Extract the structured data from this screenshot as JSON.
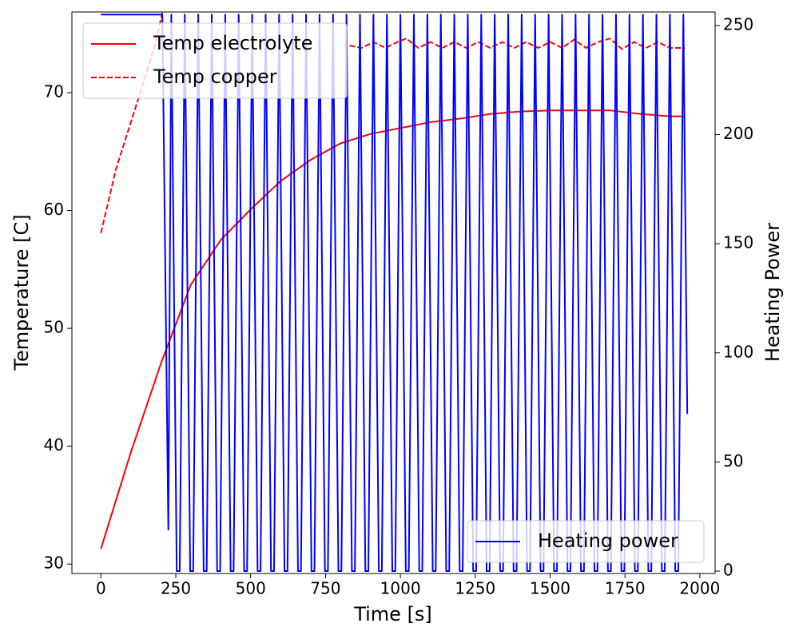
{
  "chart_data": {
    "type": "line",
    "xlabel": "Time [s]",
    "ylabel": "Temperature [C]",
    "y2label": "Heating Power",
    "xlim": [
      -97,
      2051
    ],
    "xticks": [
      0,
      250,
      500,
      750,
      1000,
      1250,
      1500,
      1750,
      2000
    ],
    "ylim": [
      29.2,
      76.85
    ],
    "yticks": [
      30,
      40,
      50,
      60,
      70
    ],
    "y2lim": [
      -1.1,
      256.2
    ],
    "y2ticks": [
      0,
      50,
      100,
      150,
      200,
      250
    ],
    "legend_loc": "upper left",
    "legend2_loc": "lower right",
    "series": [
      {
        "name": "Temp electrolyte",
        "color": "#ff0000",
        "linestyle": "solid",
        "x": [
          0,
          100,
          200,
          300,
          400,
          500,
          600,
          700,
          800,
          900,
          1000,
          1100,
          1200,
          1300,
          1400,
          1500,
          1600,
          1700,
          1800,
          1900,
          1950
        ],
        "values": [
          31.3,
          39.5,
          47.0,
          53.7,
          57.5,
          60.1,
          62.5,
          64.3,
          65.7,
          66.5,
          67.0,
          67.5,
          67.8,
          68.2,
          68.4,
          68.5,
          68.5,
          68.5,
          68.2,
          68.0,
          68.0
        ]
      },
      {
        "name": "Temp copper",
        "color": "#ff0000",
        "linestyle": "dashed",
        "x": [
          0,
          50,
          100,
          150,
          180,
          205,
          230,
          830,
          870,
          910,
          950,
          990,
          1020,
          1060,
          1100,
          1140,
          1180,
          1220,
          1260,
          1300,
          1340,
          1380,
          1420,
          1460,
          1500,
          1540,
          1580,
          1620,
          1660,
          1700,
          1740,
          1780,
          1820,
          1860,
          1900,
          1950
        ],
        "values": [
          58.1,
          63.5,
          67.5,
          71.5,
          74.0,
          76.8,
          null,
          74.0,
          73.8,
          74.3,
          73.8,
          74.3,
          74.6,
          73.8,
          74.3,
          73.8,
          74.3,
          73.8,
          74.3,
          73.8,
          74.3,
          73.8,
          74.3,
          73.8,
          74.3,
          73.8,
          74.5,
          73.8,
          74.3,
          74.6,
          73.7,
          74.3,
          73.8,
          74.3,
          73.8,
          73.8
        ]
      },
      {
        "name": "Heating power",
        "color": "#0000ff",
        "linestyle": "solid",
        "axis": "y2",
        "x": [
          0,
          205,
          225,
          235,
          253,
          263,
          280,
          298,
          308,
          325,
          343,
          353,
          370,
          388,
          398,
          415,
          433,
          443,
          460,
          478,
          488,
          505,
          523,
          533,
          550,
          568,
          578,
          595,
          613,
          623,
          640,
          658,
          668,
          685,
          703,
          713,
          730,
          748,
          758,
          775,
          793,
          803,
          820,
          838,
          848,
          865,
          883,
          893,
          910,
          928,
          938,
          955,
          973,
          983,
          1000,
          1018,
          1028,
          1045,
          1063,
          1073,
          1090,
          1108,
          1118,
          1135,
          1153,
          1163,
          1180,
          1198,
          1208,
          1225,
          1243,
          1253,
          1270,
          1288,
          1298,
          1315,
          1333,
          1343,
          1360,
          1378,
          1388,
          1405,
          1423,
          1433,
          1450,
          1468,
          1478,
          1495,
          1513,
          1523,
          1540,
          1558,
          1568,
          1585,
          1603,
          1613,
          1630,
          1648,
          1658,
          1675,
          1693,
          1703,
          1720,
          1738,
          1748,
          1765,
          1783,
          1793,
          1810,
          1828,
          1838,
          1855,
          1873,
          1883,
          1900,
          1918,
          1928,
          1945,
          1958
        ],
        "values": [
          255,
          255,
          19,
          255,
          0,
          0,
          255,
          0,
          0,
          255,
          0,
          0,
          255,
          0,
          0,
          255,
          0,
          0,
          255,
          0,
          0,
          255,
          0,
          0,
          255,
          0,
          0,
          255,
          0,
          0,
          255,
          0,
          0,
          255,
          0,
          0,
          255,
          0,
          0,
          255,
          0,
          0,
          255,
          0,
          0,
          255,
          0,
          0,
          255,
          0,
          0,
          255,
          0,
          0,
          255,
          0,
          0,
          255,
          0,
          0,
          255,
          0,
          0,
          255,
          0,
          0,
          255,
          0,
          0,
          255,
          0,
          0,
          255,
          0,
          0,
          255,
          0,
          0,
          255,
          0,
          0,
          255,
          0,
          0,
          255,
          0,
          0,
          255,
          0,
          0,
          255,
          0,
          0,
          255,
          0,
          0,
          255,
          0,
          0,
          255,
          0,
          0,
          255,
          0,
          0,
          255,
          0,
          0,
          255,
          0,
          0,
          255,
          0,
          0,
          255,
          0,
          0,
          255,
          72
        ]
      }
    ]
  }
}
